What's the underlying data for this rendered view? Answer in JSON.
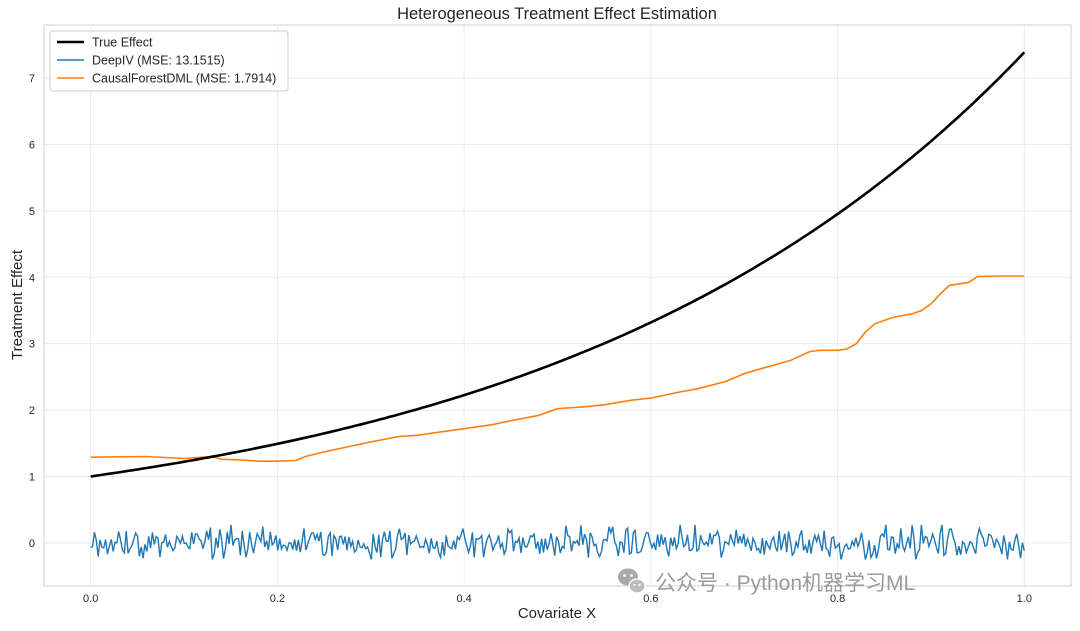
{
  "chart_data": {
    "type": "line",
    "title": "Heterogeneous Treatment Effect Estimation",
    "xlabel": "Covariate X",
    "ylabel": "Treatment Effect",
    "xlim": [
      -0.05,
      1.05
    ],
    "ylim": [
      -0.65,
      7.8
    ],
    "xticks": [
      0.0,
      0.2,
      0.4,
      0.6,
      0.8,
      1.0
    ],
    "xtick_labels": [
      "0.0",
      "0.2",
      "0.4",
      "0.6",
      "0.8",
      "1.0"
    ],
    "yticks": [
      0,
      1,
      2,
      3,
      4,
      5,
      6,
      7
    ],
    "ytick_labels": [
      "0",
      "1",
      "2",
      "3",
      "4",
      "5",
      "6",
      "7"
    ],
    "grid": true,
    "legend_position": "top-left",
    "series": [
      {
        "name": "True Effect",
        "color": "#000000",
        "function": "exp(2x)",
        "x_range": [
          0.0,
          1.0
        ]
      },
      {
        "name": "DeepIV (MSE: 13.1515)",
        "color": "#1f77b4",
        "description": "noisy values fluctuating around 0",
        "mean": 0.0,
        "range": [
          -0.25,
          0.27
        ],
        "end_value": -0.12,
        "x_range": [
          0.0,
          1.0
        ]
      },
      {
        "name": "CausalForestDML (MSE: 1.7914)",
        "color": "#ff7f0e",
        "x": [
          0.0,
          0.06,
          0.1,
          0.12,
          0.13,
          0.14,
          0.16,
          0.18,
          0.2,
          0.22,
          0.23,
          0.25,
          0.27,
          0.3,
          0.33,
          0.35,
          0.37,
          0.4,
          0.43,
          0.45,
          0.48,
          0.5,
          0.53,
          0.55,
          0.58,
          0.6,
          0.63,
          0.65,
          0.68,
          0.7,
          0.72,
          0.75,
          0.77,
          0.78,
          0.8,
          0.81,
          0.82,
          0.83,
          0.84,
          0.86,
          0.88,
          0.89,
          0.9,
          0.91,
          0.92,
          0.94,
          0.95,
          0.97,
          1.0
        ],
        "y": [
          1.29,
          1.3,
          1.27,
          1.29,
          1.3,
          1.26,
          1.25,
          1.23,
          1.23,
          1.24,
          1.3,
          1.37,
          1.43,
          1.52,
          1.6,
          1.62,
          1.66,
          1.72,
          1.78,
          1.84,
          1.92,
          2.02,
          2.05,
          2.08,
          2.15,
          2.18,
          2.27,
          2.32,
          2.43,
          2.55,
          2.63,
          2.75,
          2.88,
          2.9,
          2.9,
          2.92,
          3.0,
          3.18,
          3.3,
          3.4,
          3.45,
          3.5,
          3.6,
          3.75,
          3.88,
          3.92,
          4.01,
          4.02,
          4.02
        ]
      }
    ]
  },
  "watermark": {
    "text": "公众号 · Python机器学习ML",
    "icon": "wechat-icon"
  }
}
